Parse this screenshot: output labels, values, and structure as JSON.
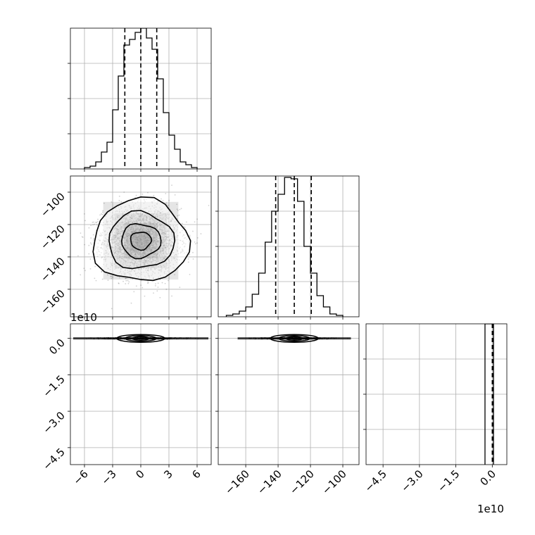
{
  "chart_data": {
    "type": "corner",
    "grid": true,
    "panels": [
      {
        "id": "hist_x",
        "type": "bar",
        "row": 0,
        "col": 0,
        "xlim": [
          -7.5,
          7.5
        ],
        "ylim": [
          0,
          1
        ],
        "histogram": {
          "edges": [
            -6,
            -5.4,
            -4.8,
            -4.2,
            -3.6,
            -3.0,
            -2.4,
            -1.8,
            -1.2,
            -0.6,
            0,
            0.6,
            1.2,
            1.8,
            2.4,
            3.0,
            3.6,
            4.2,
            4.8,
            5.4,
            6.0
          ],
          "heights": [
            0.01,
            0.02,
            0.05,
            0.12,
            0.19,
            0.42,
            0.66,
            0.88,
            0.92,
            0.97,
            1.0,
            0.93,
            0.85,
            0.64,
            0.4,
            0.24,
            0.14,
            0.05,
            0.03,
            0.01
          ]
        },
        "quantiles": [
          -1.7,
          0.0,
          1.7
        ]
      },
      {
        "id": "scatter_xy",
        "type": "scatter",
        "row": 1,
        "col": 0,
        "xlim": [
          -7.5,
          7.5
        ],
        "ylim": [
          -177,
          -90
        ],
        "yticks": [
          -100,
          -120,
          -140,
          -160
        ],
        "center": [
          0,
          -130
        ],
        "sigma": [
          2,
          10
        ],
        "levels": [
          0.39,
          0.86,
          0.99
        ]
      },
      {
        "id": "hist_y",
        "type": "bar",
        "row": 1,
        "col": 1,
        "xlim": [
          -177,
          -90
        ],
        "ylim": [
          0,
          1
        ],
        "histogram": {
          "edges": [
            -172,
            -168,
            -164,
            -160,
            -156,
            -152,
            -148,
            -144,
            -140,
            -136,
            -132,
            -128,
            -124,
            -120,
            -116,
            -112,
            -108,
            -104,
            -100
          ],
          "heights": [
            0.01,
            0.02,
            0.04,
            0.07,
            0.16,
            0.31,
            0.53,
            0.75,
            0.87,
            0.99,
            0.98,
            0.82,
            0.5,
            0.31,
            0.15,
            0.07,
            0.02,
            0.01
          ]
        },
        "quantiles": [
          -141.5,
          -130,
          -119.5
        ]
      },
      {
        "id": "scatter_xz",
        "type": "scatter",
        "row": 2,
        "col": 0,
        "xlim": [
          -7.5,
          7.5
        ],
        "ylim": [
          -5.2,
          0.6
        ],
        "yticks": [
          0.0,
          -1.5,
          -3.0,
          -4.5
        ],
        "center": [
          0,
          0
        ]
      },
      {
        "id": "scatter_yz",
        "type": "scatter",
        "row": 2,
        "col": 1,
        "xlim": [
          -177,
          -90
        ],
        "ylim": [
          -5.2,
          0.6
        ],
        "center": [
          -130,
          0
        ]
      },
      {
        "id": "hist_z",
        "type": "bar",
        "row": 2,
        "col": 2,
        "xlim": [
          -5.2,
          0.6
        ],
        "ylim": [
          0,
          1
        ],
        "histogram": {
          "edges": [
            -0.3,
            0.0,
            0.05
          ],
          "heights": [
            1.0,
            1.0
          ]
        },
        "quantiles": [
          0.0,
          0.03
        ]
      }
    ],
    "axis_tick_labels": {
      "bottom_col0": [
        "−6",
        "−3",
        "0",
        "3",
        "6"
      ],
      "bottom_col1": [
        "−160",
        "−140",
        "−120",
        "−100"
      ],
      "bottom_col2": [
        "−4.5",
        "−3.0",
        "−1.5",
        "0.0"
      ],
      "left_row1": [
        "−100",
        "−120",
        "−140",
        "−160"
      ],
      "left_row2": [
        "0.0",
        "−1.5",
        "−3.0",
        "−4.5"
      ]
    },
    "offset_text": {
      "left_row2": "1e10",
      "bottom_col2": "1e10"
    }
  }
}
